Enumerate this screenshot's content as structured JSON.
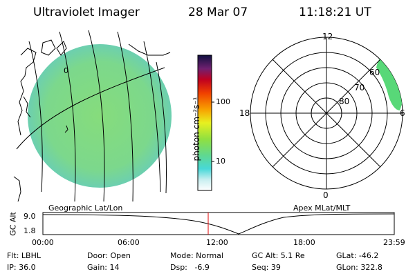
{
  "header": {
    "instrument": "Ultraviolet Imager",
    "date": "28 Mar 07",
    "time": "11:18:21 UT"
  },
  "colorbar": {
    "unit_label": "photon cm⁻²s⁻¹",
    "ticks": [
      "100",
      "10"
    ]
  },
  "earth_panel": {
    "caption": "Geographic Lat/Lon",
    "grid_marker": "0"
  },
  "polar_panel": {
    "caption": "Apex MLat/MLT",
    "mlt_labels": {
      "top": "12",
      "left": "18",
      "right": "6",
      "bottom": "0"
    },
    "mlat_labels": [
      "60",
      "70",
      "80"
    ]
  },
  "alt_plot": {
    "ylabel": "GC Alt",
    "y_ticks": [
      "9.0",
      "1.8"
    ],
    "x_ticks": [
      "00:00",
      "06:00",
      "12:00",
      "18:00",
      "23:59"
    ],
    "current_time_color": "#e00000"
  },
  "info": {
    "filter": "Flt: LBHL",
    "ip": "IP: 36.0",
    "door": "Door: Open",
    "gain": "Gain: 14",
    "mode": "Mode: Normal",
    "dsp": "Dsp:   -6.9",
    "gc_alt": "GC Alt: 5.1 Re",
    "seq": "Seq: 39",
    "glat": "GLat: -46.2",
    "glon": "GLon: 322.8"
  }
}
